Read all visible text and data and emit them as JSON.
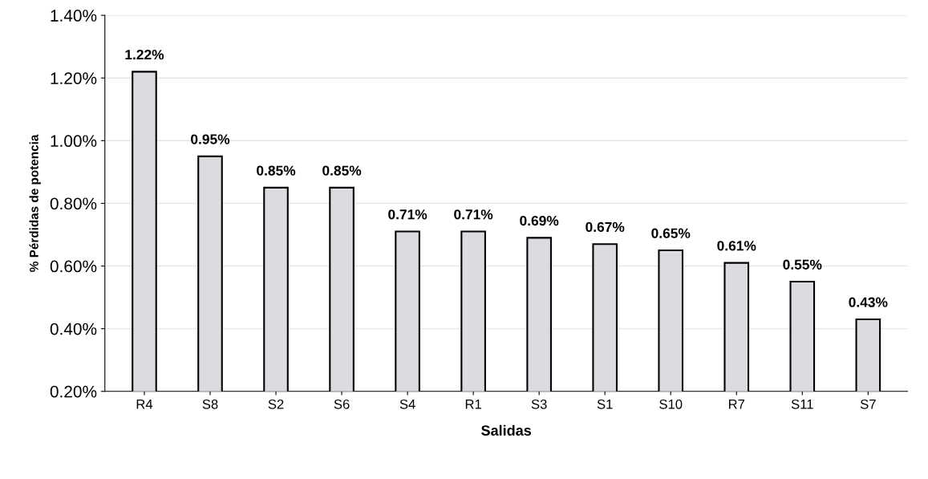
{
  "chart_data": {
    "type": "bar",
    "xlabel": "Salidas",
    "ylabel": "% Pérdidas de potencia",
    "categories": [
      "R4",
      "S8",
      "S2",
      "S6",
      "S4",
      "R1",
      "S3",
      "S1",
      "S10",
      "R7",
      "S11",
      "S7"
    ],
    "values": [
      1.22,
      0.95,
      0.85,
      0.85,
      0.71,
      0.71,
      0.69,
      0.67,
      0.65,
      0.61,
      0.55,
      0.43
    ],
    "value_labels": [
      "1.22%",
      "0.95%",
      "0.85%",
      "0.85%",
      "0.71%",
      "0.71%",
      "0.69%",
      "0.67%",
      "0.65%",
      "0.61%",
      "0.55%",
      "0.43%"
    ],
    "color": "#dcdce0",
    "ylim": [
      0.2,
      1.4
    ],
    "yticks": [
      {
        "value": 0.2,
        "label": "0.20%"
      },
      {
        "value": 0.4,
        "label": "0.40%"
      },
      {
        "value": 0.6,
        "label": "0.60%"
      },
      {
        "value": 0.8,
        "label": "0.80%"
      },
      {
        "value": 1.0,
        "label": "1.00%"
      },
      {
        "value": 1.2,
        "label": "1.20%"
      },
      {
        "value": 1.4,
        "label": "1.40%"
      }
    ],
    "grid": "y",
    "legend": false
  }
}
